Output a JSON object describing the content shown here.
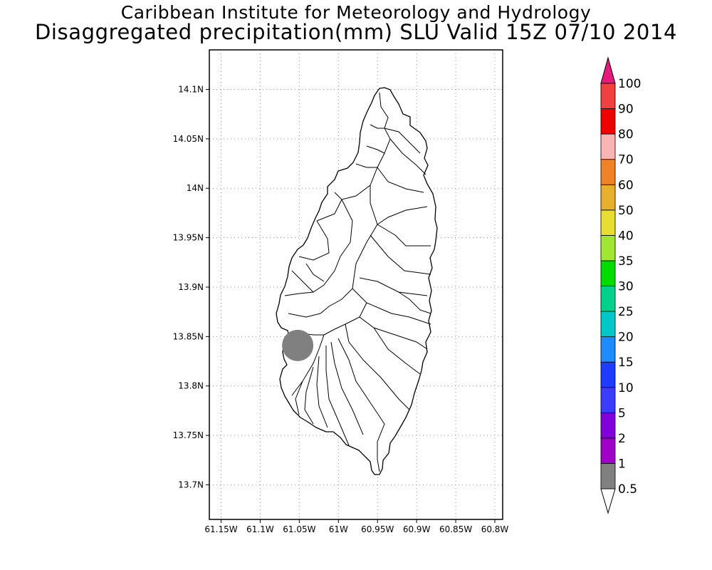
{
  "header": {
    "line1": "Caribbean Institute for Meteorology and Hydrology",
    "line2": "Disaggregated precipitation(mm) SLU Valid 15Z 07/10 2014"
  },
  "map": {
    "region": "Saint Lucia",
    "lon_range": [
      -61.165,
      -60.79
    ],
    "lat_range": [
      13.665,
      14.14
    ],
    "x_ticks": [
      {
        "value": -61.15,
        "label": "61.15W"
      },
      {
        "value": -61.1,
        "label": "61.1W"
      },
      {
        "value": -61.05,
        "label": "61.05W"
      },
      {
        "value": -61.0,
        "label": "61W"
      },
      {
        "value": -60.95,
        "label": "60.95W"
      },
      {
        "value": -60.9,
        "label": "60.9W"
      },
      {
        "value": -60.85,
        "label": "60.85W"
      },
      {
        "value": -60.8,
        "label": "60.8W"
      }
    ],
    "y_ticks": [
      {
        "value": 14.1,
        "label": "14.1N"
      },
      {
        "value": 14.05,
        "label": "14.05N"
      },
      {
        "value": 14.0,
        "label": "14N"
      },
      {
        "value": 13.95,
        "label": "13.95N"
      },
      {
        "value": 13.9,
        "label": "13.9N"
      },
      {
        "value": 13.85,
        "label": "13.85N"
      },
      {
        "value": 13.8,
        "label": "13.8N"
      },
      {
        "value": 13.75,
        "label": "13.75N"
      },
      {
        "value": 13.7,
        "label": "13.7N"
      }
    ],
    "grid": "dotted",
    "precip_patch": {
      "lon": -61.052,
      "lat": 13.841,
      "class": "0.5-1",
      "color": "#808080"
    }
  },
  "colorbar": {
    "labels": [
      "0.5",
      "1",
      "2",
      "5",
      "10",
      "15",
      "20",
      "25",
      "30",
      "35",
      "40",
      "50",
      "60",
      "70",
      "80",
      "90",
      "100"
    ],
    "colors": [
      "#808080",
      "#a000c8",
      "#8200dc",
      "#3c3cff",
      "#1e3cff",
      "#1e8cff",
      "#00c8c8",
      "#00d28c",
      "#00dc00",
      "#a0e632",
      "#e6dc32",
      "#e6af2d",
      "#f08228",
      "#fab4b4",
      "#f00000",
      "#f04040"
    ],
    "over_color": "#e6197d",
    "under_color": "#ffffff"
  }
}
